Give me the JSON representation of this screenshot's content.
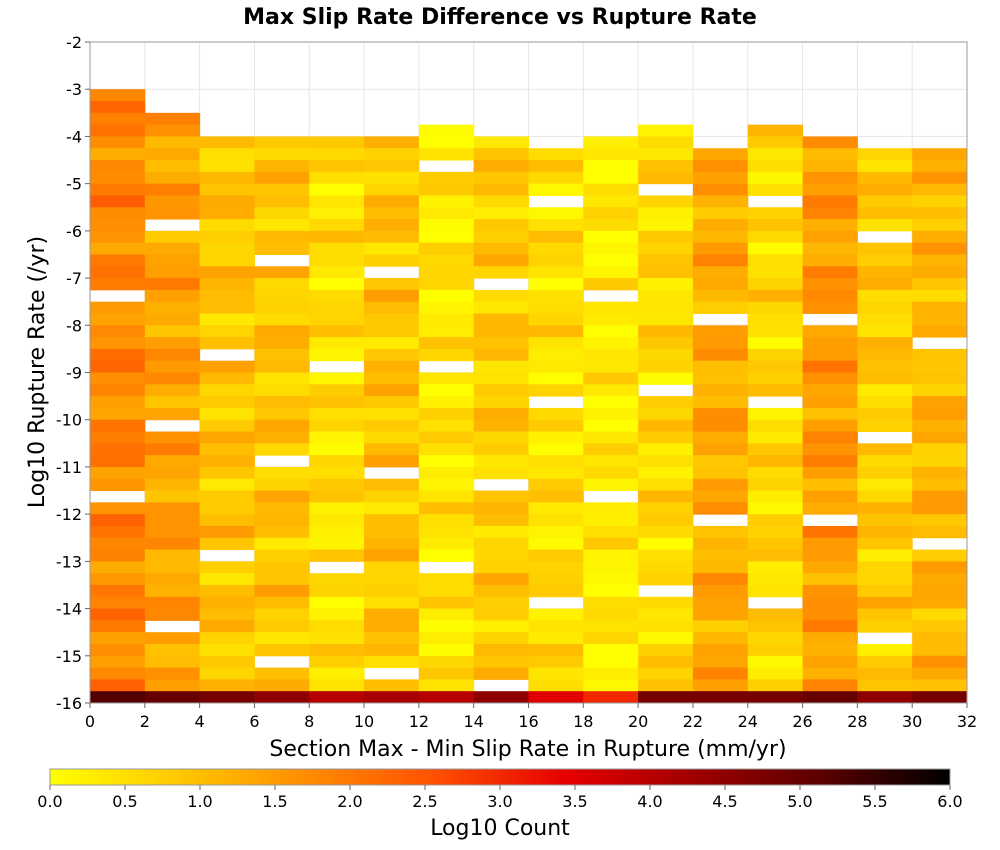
{
  "chart_data": {
    "type": "heatmap",
    "title": "Max Slip Rate Difference vs Rupture Rate",
    "xlabel": "Section Max - Min Slip Rate in Rupture (mm/yr)",
    "ylabel": "Log10 Rupture Rate (/yr)",
    "xlim": [
      0,
      32
    ],
    "ylim": [
      -16,
      -2
    ],
    "x_ticks": [
      0,
      2,
      4,
      6,
      8,
      10,
      12,
      14,
      16,
      18,
      20,
      22,
      24,
      26,
      28,
      30,
      32
    ],
    "y_ticks": [
      -2,
      -3,
      -4,
      -5,
      -6,
      -7,
      -8,
      -9,
      -10,
      -11,
      -12,
      -13,
      -14,
      -15,
      -16
    ],
    "x_bin_width": 2,
    "y_bin_height": 0.25,
    "grid": true,
    "colorbar": {
      "label": "Log10 Count",
      "min": 0.0,
      "max": 6.0,
      "ticks": [
        "0.0",
        "0.5",
        "1.0",
        "1.5",
        "2.0",
        "2.5",
        "3.0",
        "3.5",
        "4.0",
        "4.5",
        "5.0",
        "5.5",
        "6.0"
      ],
      "position": "bottom",
      "colors": [
        "#ffff00",
        "#ffc800",
        "#ff8c00",
        "#ff5000",
        "#e60000",
        "#a00000",
        "#5a0000",
        "#000000"
      ]
    },
    "columns": [
      {
        "x": 1,
        "y_top": -3.0,
        "y_bottom": -16.0,
        "value": 1.8,
        "bottom_row_value": 5.2
      },
      {
        "x": 3,
        "y_top": -3.5,
        "y_bottom": -16.0,
        "value": 1.4,
        "bottom_row_value": 5.0
      },
      {
        "x": 5,
        "y_top": -4.0,
        "y_bottom": -16.0,
        "value": 0.9,
        "bottom_row_value": 4.8
      },
      {
        "x": 7,
        "y_top": -4.0,
        "y_bottom": -16.0,
        "value": 0.9,
        "bottom_row_value": 4.5
      },
      {
        "x": 9,
        "y_top": -4.0,
        "y_bottom": -16.0,
        "value": 0.5,
        "bottom_row_value": 4.0
      },
      {
        "x": 11,
        "y_top": -4.0,
        "y_bottom": -16.0,
        "value": 0.9,
        "bottom_row_value": 4.2
      },
      {
        "x": 13,
        "y_top": -3.75,
        "y_bottom": -16.0,
        "value": 0.4,
        "bottom_row_value": 4.0
      },
      {
        "x": 15,
        "y_top": -4.0,
        "y_bottom": -16.0,
        "value": 0.8,
        "bottom_row_value": 4.5
      },
      {
        "x": 17,
        "y_top": -4.25,
        "y_bottom": -16.0,
        "value": 0.5,
        "bottom_row_value": 3.5
      },
      {
        "x": 19,
        "y_top": -4.0,
        "y_bottom": -16.0,
        "value": 0.3,
        "bottom_row_value": 3.0
      },
      {
        "x": 21,
        "y_top": -3.75,
        "y_bottom": -16.0,
        "value": 0.6,
        "bottom_row_value": 4.8
      },
      {
        "x": 23,
        "y_top": -4.25,
        "y_bottom": -16.0,
        "value": 1.3,
        "bottom_row_value": 4.8
      },
      {
        "x": 25,
        "y_top": -3.75,
        "y_bottom": -16.0,
        "value": 0.6,
        "bottom_row_value": 4.8
      },
      {
        "x": 27,
        "y_top": -4.0,
        "y_bottom": -16.0,
        "value": 1.5,
        "bottom_row_value": 5.0
      },
      {
        "x": 29,
        "y_top": -4.25,
        "y_bottom": -16.0,
        "value": 0.8,
        "bottom_row_value": 4.5
      },
      {
        "x": 31,
        "y_top": -4.25,
        "y_bottom": -16.0,
        "value": 1.1,
        "bottom_row_value": 4.8
      }
    ]
  }
}
